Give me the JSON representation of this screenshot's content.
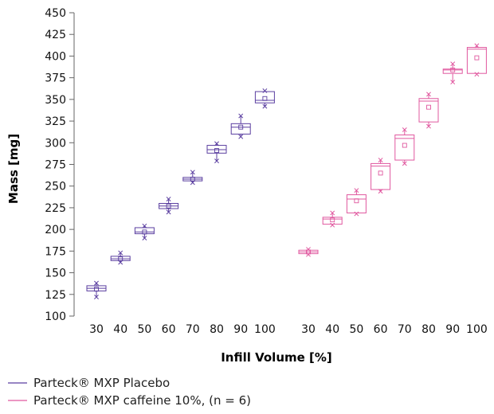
{
  "chart_data": {
    "type": "box",
    "xlabel": "Infill Volume [%]",
    "ylabel": "Mass [mg]",
    "ylim": [
      100,
      450
    ],
    "yticks": [
      100,
      125,
      150,
      175,
      200,
      225,
      250,
      275,
      300,
      325,
      350,
      375,
      400,
      425,
      450
    ],
    "categories": [
      "30",
      "40",
      "50",
      "60",
      "70",
      "80",
      "90",
      "100"
    ],
    "series": [
      {
        "name": "Parteck® MXP Placebo",
        "color": "#5b3fa0",
        "boxes": [
          {
            "cat": "30",
            "min": 122,
            "q1": 129,
            "median": 132,
            "q3": 135,
            "max": 138,
            "mean": 131
          },
          {
            "cat": "40",
            "min": 162,
            "q1": 164,
            "median": 166,
            "q3": 169,
            "max": 173,
            "mean": 166
          },
          {
            "cat": "50",
            "min": 190,
            "q1": 195,
            "median": 197,
            "q3": 202,
            "max": 204,
            "mean": 197
          },
          {
            "cat": "60",
            "min": 220,
            "q1": 224,
            "median": 227,
            "q3": 230,
            "max": 235,
            "mean": 227
          },
          {
            "cat": "70",
            "min": 254,
            "q1": 256,
            "median": 258,
            "q3": 260,
            "max": 266,
            "mean": 258
          },
          {
            "cat": "80",
            "min": 279,
            "q1": 288,
            "median": 292,
            "q3": 297,
            "max": 299,
            "mean": 291
          },
          {
            "cat": "90",
            "min": 307,
            "q1": 310,
            "median": 318,
            "q3": 322,
            "max": 331,
            "mean": 318
          },
          {
            "cat": "100",
            "min": 342,
            "q1": 346,
            "median": 349,
            "q3": 359,
            "max": 360,
            "mean": 351
          }
        ]
      },
      {
        "name": "Parteck® MXP caffeine 10%, (n = 6)",
        "color": "#e0589f",
        "boxes": [
          {
            "cat": "30",
            "min": 171,
            "q1": 172,
            "median": 174,
            "q3": 176,
            "max": 177,
            "mean": 174
          },
          {
            "cat": "40",
            "min": 205,
            "q1": 206,
            "median": 212,
            "q3": 214,
            "max": 219,
            "mean": 211
          },
          {
            "cat": "50",
            "min": 218,
            "q1": 219,
            "median": 235,
            "q3": 240,
            "max": 245,
            "mean": 233
          },
          {
            "cat": "60",
            "min": 244,
            "q1": 246,
            "median": 273,
            "q3": 276,
            "max": 280,
            "mean": 265
          },
          {
            "cat": "70",
            "min": 276,
            "q1": 280,
            "median": 305,
            "q3": 309,
            "max": 315,
            "mean": 297
          },
          {
            "cat": "80",
            "min": 319,
            "q1": 324,
            "median": 348,
            "q3": 351,
            "max": 356,
            "mean": 341
          },
          {
            "cat": "90",
            "min": 370,
            "q1": 380,
            "median": 384,
            "q3": 385,
            "max": 391,
            "mean": 384
          },
          {
            "cat": "100",
            "min": 379,
            "q1": 380,
            "median": 408,
            "q3": 410,
            "max": 412,
            "mean": 398
          }
        ]
      }
    ],
    "grid": false,
    "legend_position": "bottom-left"
  }
}
